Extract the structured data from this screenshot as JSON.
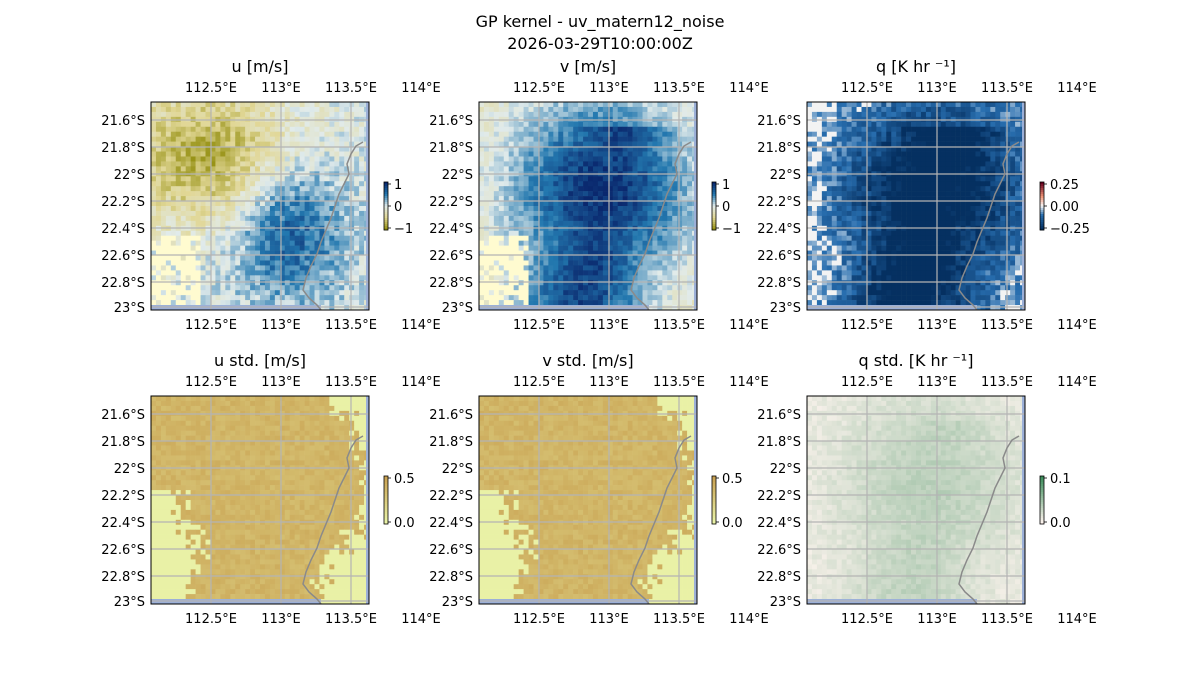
{
  "figure": {
    "title_line1": "GP kernel - uv_matern12_noise",
    "title_line2": "2026-03-29T10:00:00Z"
  },
  "axes": {
    "lon_ticks": [
      "112.5°E",
      "113°E",
      "113.5°E",
      "114°E"
    ],
    "lat_ticks": [
      "21.6°S",
      "21.8°S",
      "22°S",
      "22.2°S",
      "22.4°S",
      "22.6°S",
      "22.8°S",
      "23°S"
    ]
  },
  "panels": [
    {
      "id": "u",
      "title": "u [m/s]",
      "colorbar": {
        "ticks": [
          "1",
          "0",
          "−1"
        ],
        "scheme": "diverging-yellow-blue"
      }
    },
    {
      "id": "v",
      "title": "v [m/s]",
      "colorbar": {
        "ticks": [
          "1",
          "0",
          "−1"
        ],
        "scheme": "diverging-yellow-blue"
      }
    },
    {
      "id": "q",
      "title": "q [K hr ⁻¹]",
      "colorbar": {
        "ticks": [
          "0.25",
          "0.00",
          "−0.25"
        ],
        "scheme": "diverging-red-blue"
      }
    },
    {
      "id": "u_std",
      "title": "u std. [m/s]",
      "colorbar": {
        "ticks": [
          "0.5",
          "0.0"
        ],
        "scheme": "sequential-ochre"
      }
    },
    {
      "id": "v_std",
      "title": "v std. [m/s]",
      "colorbar": {
        "ticks": [
          "0.5",
          "0.0"
        ],
        "scheme": "sequential-ochre"
      }
    },
    {
      "id": "q_std",
      "title": "q std. [K hr ⁻¹]",
      "colorbar": {
        "ticks": [
          "0.1",
          "0.0"
        ],
        "scheme": "sequential-green"
      }
    }
  ],
  "colors": {
    "ocean_light": "#fffbd0",
    "land_edge": "#9cb0d8",
    "grid": "#b4b4b4",
    "coast": "#8a8a8a"
  }
}
